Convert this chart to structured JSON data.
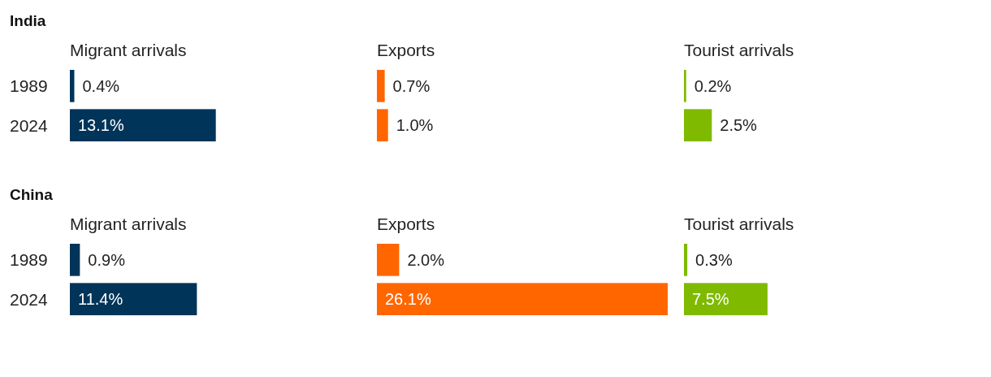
{
  "chart_data": [
    {
      "type": "bar",
      "orientation": "horizontal",
      "title": "India",
      "subtitle": "Migrant arrivals",
      "categories": [
        "1989",
        "2024"
      ],
      "values": [
        0.4,
        13.1
      ],
      "value_labels": [
        "0.4%",
        "13.1%"
      ],
      "color": "#003459"
    },
    {
      "type": "bar",
      "orientation": "horizontal",
      "subtitle": "Exports",
      "categories": [
        "1989",
        "2024"
      ],
      "values": [
        0.7,
        1.0
      ],
      "value_labels": [
        "0.7%",
        "1.0%"
      ],
      "color": "#ff6600",
      "tick_labels": false
    },
    {
      "type": "bar",
      "orientation": "horizontal",
      "subtitle": "Tourist arrivals",
      "categories": [
        "1989",
        "2024"
      ],
      "values": [
        0.2,
        2.5
      ],
      "value_labels": [
        "0.2%",
        "2.5%"
      ],
      "color": "#7fba00",
      "tick_labels": false
    },
    {
      "type": "bar",
      "orientation": "horizontal",
      "title": "China",
      "subtitle": "Migrant arrivals",
      "categories": [
        "1989",
        "2024"
      ],
      "values": [
        0.9,
        11.4
      ],
      "value_labels": [
        "0.9%",
        "11.4%"
      ],
      "color": "#003459"
    },
    {
      "type": "bar",
      "orientation": "horizontal",
      "subtitle": "Exports",
      "categories": [
        "1989",
        "2024"
      ],
      "values": [
        2.0,
        26.1
      ],
      "value_labels": [
        "2.0%",
        "26.1%"
      ],
      "color": "#ff6600",
      "tick_labels": false
    },
    {
      "type": "bar",
      "orientation": "horizontal",
      "subtitle": "Tourist arrivals",
      "categories": [
        "1989",
        "2024"
      ],
      "values": [
        0.3,
        7.5
      ],
      "value_labels": [
        "0.3%",
        "7.5%"
      ],
      "color": "#7fba00",
      "tick_labels": false
    }
  ]
}
